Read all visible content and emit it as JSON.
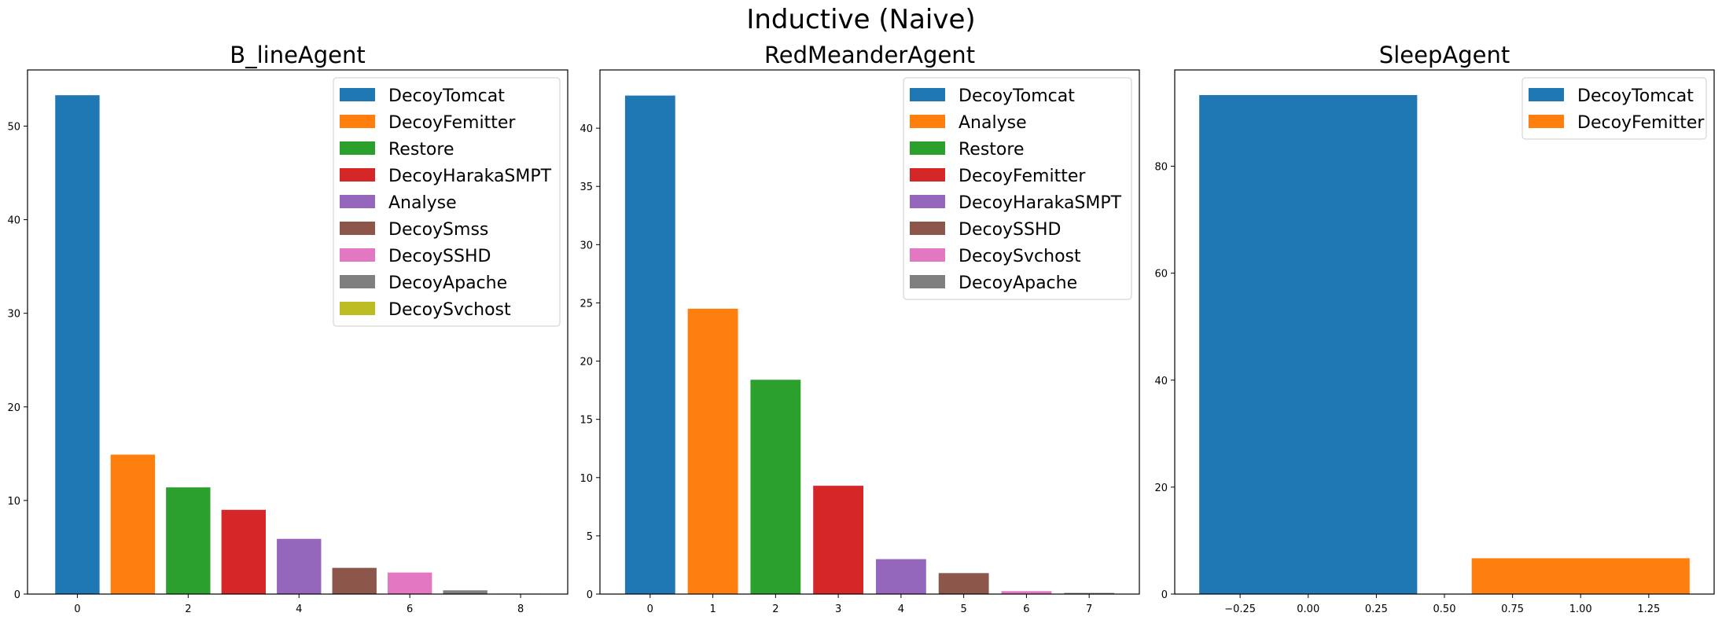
{
  "figure_title": "Inductive (Naive)",
  "colors": {
    "blue": "#1f77b4",
    "orange": "#ff7f0e",
    "green": "#2ca02c",
    "red": "#d62728",
    "purple": "#9467bd",
    "brown": "#8c564b",
    "pink": "#e377c2",
    "gray": "#7f7f7f",
    "olive": "#bcbd22"
  },
  "chart_data": [
    {
      "type": "bar",
      "title": "B_lineAgent",
      "xlabel": "",
      "ylabel": "",
      "categories": [
        "DecoyTomcat",
        "DecoyFemitter",
        "Restore",
        "DecoyHarakaSMPT",
        "Analyse",
        "DecoySmss",
        "DecoySSHD",
        "DecoyApache",
        "DecoySvchost"
      ],
      "x": [
        0,
        1,
        2,
        3,
        4,
        5,
        6,
        7,
        8
      ],
      "values": [
        53.3,
        14.9,
        11.4,
        9.0,
        5.9,
        2.8,
        2.3,
        0.4,
        0.05
      ],
      "bar_colors": [
        "#1f77b4",
        "#ff7f0e",
        "#2ca02c",
        "#d62728",
        "#9467bd",
        "#8c564b",
        "#e377c2",
        "#7f7f7f",
        "#bcbd22"
      ],
      "bar_width": 0.8,
      "xlim": [
        -0.9,
        8.85
      ],
      "ylim": [
        0,
        56
      ],
      "xticks": [
        0,
        2,
        4,
        6,
        8
      ],
      "xtick_labels": [
        "0",
        "2",
        "4",
        "6",
        "8"
      ],
      "yticks": [
        0,
        10,
        20,
        30,
        40,
        50
      ],
      "ytick_labels": [
        "0",
        "10",
        "20",
        "30",
        "40",
        "50"
      ],
      "legend": "upper right",
      "grid": false
    },
    {
      "type": "bar",
      "title": "RedMeanderAgent",
      "xlabel": "",
      "ylabel": "",
      "categories": [
        "DecoyTomcat",
        "Analyse",
        "Restore",
        "DecoyFemitter",
        "DecoyHarakaSMPT",
        "DecoySSHD",
        "DecoySvchost",
        "DecoyApache"
      ],
      "x": [
        0,
        1,
        2,
        3,
        4,
        5,
        6,
        7
      ],
      "values": [
        42.8,
        24.5,
        18.4,
        9.3,
        3.0,
        1.8,
        0.25,
        0.1
      ],
      "bar_colors": [
        "#1f77b4",
        "#ff7f0e",
        "#2ca02c",
        "#d62728",
        "#9467bd",
        "#8c564b",
        "#e377c2",
        "#7f7f7f"
      ],
      "bar_width": 0.8,
      "xlim": [
        -0.8,
        7.8
      ],
      "ylim": [
        0,
        45
      ],
      "xticks": [
        0,
        1,
        2,
        3,
        4,
        5,
        6,
        7
      ],
      "xtick_labels": [
        "0",
        "1",
        "2",
        "3",
        "4",
        "5",
        "6",
        "7"
      ],
      "yticks": [
        0,
        5,
        10,
        15,
        20,
        25,
        30,
        35,
        40
      ],
      "ytick_labels": [
        "0",
        "5",
        "10",
        "15",
        "20",
        "25",
        "30",
        "35",
        "40"
      ],
      "legend": "upper right",
      "grid": false
    },
    {
      "type": "bar",
      "title": "SleepAgent",
      "xlabel": "",
      "ylabel": "",
      "categories": [
        "DecoyTomcat",
        "DecoyFemitter"
      ],
      "x": [
        0,
        1
      ],
      "values": [
        93.3,
        6.7
      ],
      "bar_colors": [
        "#1f77b4",
        "#ff7f0e"
      ],
      "bar_width": 0.8,
      "xlim": [
        -0.49,
        1.49
      ],
      "ylim": [
        0,
        98
      ],
      "xticks": [
        -0.25,
        0.0,
        0.25,
        0.5,
        0.75,
        1.0,
        1.25
      ],
      "xtick_labels": [
        "−0.25",
        "0.00",
        "0.25",
        "0.50",
        "0.75",
        "1.00",
        "1.25"
      ],
      "yticks": [
        0,
        20,
        40,
        60,
        80
      ],
      "ytick_labels": [
        "0",
        "20",
        "40",
        "60",
        "80"
      ],
      "legend": "upper right",
      "grid": false
    }
  ]
}
